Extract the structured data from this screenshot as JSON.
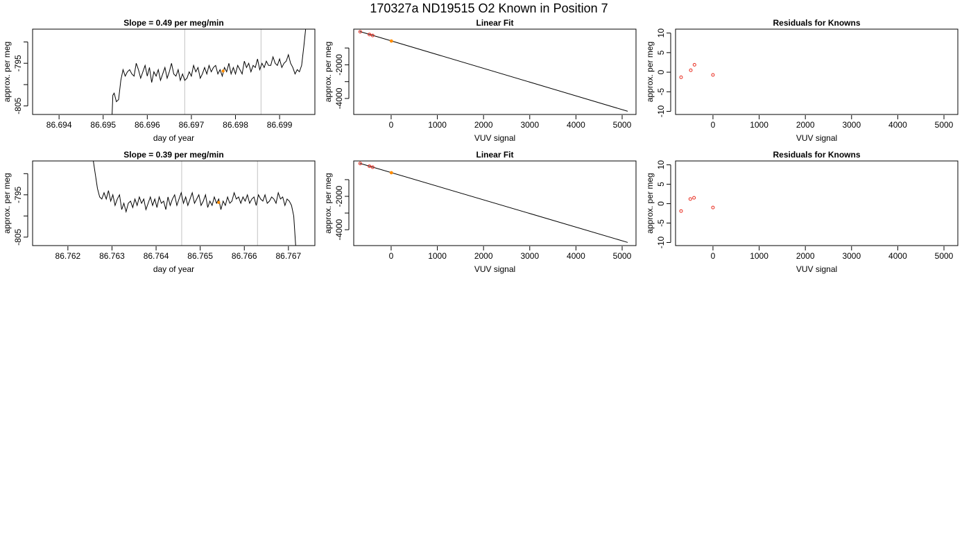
{
  "page": {
    "title": "170327a     ND19515   O2 Known in Position  7"
  },
  "colors": {
    "trace": "#000000",
    "known_points": "#e8291c",
    "sample_point": "#ff8c00",
    "window_lines": "#cccccc",
    "frame": "#000000"
  },
  "chart_data": [
    {
      "id": "trace-row1",
      "type": "line",
      "title": "Slope =  0.49  per meg/min",
      "xlabel": "day of year",
      "ylabel": "approx. per meg",
      "xlim": [
        86.6934,
        86.6998
      ],
      "ylim": [
        -807.0,
        -787.0
      ],
      "xticks": [
        86.694,
        86.695,
        86.696,
        86.697,
        86.698,
        86.699
      ],
      "xtick_labels": [
        "86.694",
        "86.695",
        "86.696",
        "86.697",
        "86.698",
        "86.699"
      ],
      "yticks": [
        -805,
        -800,
        -795,
        -790
      ],
      "ytick_labels": [
        "-805",
        "",
        "-795",
        ""
      ],
      "window_lines": [
        86.69685,
        86.69858
      ],
      "series": [
        {
          "x": [
            86.6952,
            86.69522,
            86.69525,
            86.6953,
            86.69535,
            86.6954,
            86.69545,
            86.6955,
            86.69555,
            86.6956,
            86.69565,
            86.6957,
            86.69575,
            86.6958,
            86.69585,
            86.6959,
            86.69595,
            86.696,
            86.69605,
            86.6961,
            86.69615,
            86.6962,
            86.69625,
            86.6963,
            86.69635,
            86.6964,
            86.69645,
            86.6965,
            86.69655,
            86.6966,
            86.69665,
            86.6967,
            86.69675,
            86.6968,
            86.69685,
            86.6969,
            86.69695,
            86.697,
            86.69705,
            86.6971,
            86.69715,
            86.6972,
            86.69725,
            86.6973,
            86.69735,
            86.6974,
            86.69745,
            86.6975,
            86.69755,
            86.6976,
            86.69765,
            86.6977,
            86.69775,
            86.6978,
            86.69785,
            86.6979,
            86.69795,
            86.698,
            86.69805,
            86.6981,
            86.69815,
            86.6982,
            86.69825,
            86.6983,
            86.69835,
            86.6984,
            86.69845,
            86.6985,
            86.69855,
            86.6986,
            86.69865,
            86.6987,
            86.69875,
            86.6988,
            86.69885,
            86.6989,
            86.69895,
            86.699,
            86.69905,
            86.6991,
            86.69915,
            86.6992,
            86.69925,
            86.6993,
            86.69935,
            86.6994,
            86.69945,
            86.6995,
            86.69955,
            86.6996
          ],
          "y": [
            -807.5,
            -802.5,
            -802.0,
            -804.0,
            -803.5,
            -799.0,
            -796.5,
            -798.0,
            -797.0,
            -796.5,
            -797.5,
            -798.0,
            -795.0,
            -796.5,
            -798.5,
            -797.0,
            -795.5,
            -798.0,
            -796.0,
            -799.5,
            -797.0,
            -798.0,
            -796.5,
            -799.0,
            -797.5,
            -796.0,
            -798.5,
            -797.0,
            -795.0,
            -797.5,
            -798.0,
            -796.5,
            -799.0,
            -797.5,
            -799.0,
            -798.5,
            -797.0,
            -798.0,
            -795.5,
            -797.0,
            -796.0,
            -798.5,
            -797.5,
            -796.0,
            -797.5,
            -795.5,
            -797.0,
            -796.0,
            -795.5,
            -797.5,
            -796.5,
            -798.0,
            -796.0,
            -797.0,
            -795.0,
            -797.5,
            -796.0,
            -797.5,
            -795.5,
            -796.5,
            -797.5,
            -794.5,
            -796.0,
            -795.0,
            -797.0,
            -795.5,
            -796.0,
            -794.0,
            -796.5,
            -795.0,
            -796.0,
            -794.5,
            -795.5,
            -795.5,
            -793.5,
            -795.0,
            -795.5,
            -794.0,
            -796.0,
            -795.0,
            -794.5,
            -793.0,
            -795.0,
            -796.0,
            -797.5,
            -796.5,
            -797.0,
            -795.5,
            -791.0,
            -786.0
          ]
        }
      ],
      "marker": {
        "x": 86.69772,
        "y": -796.8
      }
    },
    {
      "id": "fit-row1",
      "type": "scatter",
      "title": "Linear Fit",
      "xlabel": "VUV signal",
      "ylabel": "approx. per meg",
      "xlim": [
        -810,
        5300
      ],
      "ylim": [
        -4950,
        120
      ],
      "xticks": [
        0,
        1000,
        2000,
        3000,
        4000,
        5000
      ],
      "xtick_labels": [
        "0",
        "1000",
        "2000",
        "3000",
        "4000",
        "5000"
      ],
      "yticks": [
        -4000,
        -3000,
        -2000,
        -1000
      ],
      "ytick_labels": [
        "-4000",
        "",
        "-2000",
        ""
      ],
      "fit_line": {
        "x": [
          -680,
          5120
        ],
        "y": [
          -20,
          -4760
        ]
      },
      "points": [
        {
          "x": -670,
          "y": -33
        },
        {
          "x": -470,
          "y": -197
        },
        {
          "x": -400,
          "y": -255
        }
      ],
      "sample_point": {
        "x": 5,
        "y": -586
      }
    },
    {
      "id": "resid-row1",
      "type": "scatter",
      "title": "Residuals for Knowns",
      "xlabel": "VUV signal",
      "ylabel": "approx. per meg",
      "xlim": [
        -810,
        5300
      ],
      "ylim": [
        -10.8,
        11
      ],
      "xticks": [
        0,
        1000,
        2000,
        3000,
        4000,
        5000
      ],
      "xtick_labels": [
        "0",
        "1000",
        "2000",
        "3000",
        "4000",
        "5000"
      ],
      "yticks": [
        -10,
        -5,
        0,
        5,
        10
      ],
      "ytick_labels": [
        "-10",
        "-5",
        "0",
        "5",
        "10"
      ],
      "points": [
        {
          "x": -690,
          "y": -1.3
        },
        {
          "x": -480,
          "y": 0.5
        },
        {
          "x": -400,
          "y": 1.9
        },
        {
          "x": 0,
          "y": -0.7
        }
      ]
    },
    {
      "id": "trace-row2",
      "type": "line",
      "title": "Slope =  0.39  per meg/min",
      "xlabel": "day of year",
      "ylabel": "approx. per meg",
      "xlim": [
        86.7612,
        86.7676
      ],
      "ylim": [
        -807.0,
        -787.0
      ],
      "xticks": [
        86.762,
        86.763,
        86.764,
        86.765,
        86.766,
        86.767
      ],
      "xtick_labels": [
        "86.762",
        "86.763",
        "86.764",
        "86.765",
        "86.766",
        "86.767"
      ],
      "yticks": [
        -805,
        -800,
        -795,
        -790
      ],
      "ytick_labels": [
        "-805",
        "",
        "-795",
        ""
      ],
      "window_lines": [
        86.76458,
        86.7663
      ],
      "series": [
        {
          "x": [
            86.76257,
            86.76262,
            86.76267,
            86.76272,
            86.76277,
            86.76282,
            86.76287,
            86.76292,
            86.76297,
            86.76302,
            86.76307,
            86.76312,
            86.76317,
            86.76322,
            86.76327,
            86.76332,
            86.76337,
            86.76342,
            86.76347,
            86.76352,
            86.76357,
            86.76362,
            86.76367,
            86.76372,
            86.76377,
            86.76382,
            86.76387,
            86.76392,
            86.76397,
            86.76402,
            86.76407,
            86.76412,
            86.76417,
            86.76422,
            86.76427,
            86.76432,
            86.76437,
            86.76442,
            86.76447,
            86.76452,
            86.76457,
            86.76462,
            86.76467,
            86.76472,
            86.76477,
            86.76482,
            86.76487,
            86.76492,
            86.76497,
            86.76502,
            86.76507,
            86.76512,
            86.76517,
            86.76522,
            86.76527,
            86.76532,
            86.76537,
            86.76542,
            86.76547,
            86.76552,
            86.76557,
            86.76562,
            86.76567,
            86.76572,
            86.76577,
            86.76582,
            86.76587,
            86.76592,
            86.76597,
            86.76602,
            86.76607,
            86.76612,
            86.76617,
            86.76622,
            86.76627,
            86.76632,
            86.76637,
            86.76642,
            86.76647,
            86.76652,
            86.76657,
            86.76662,
            86.76667,
            86.76672,
            86.76677,
            86.76682,
            86.76687,
            86.76692,
            86.76697,
            86.76702,
            86.76707,
            86.76712,
            86.76717
          ],
          "y": [
            -786.5,
            -790.0,
            -793.5,
            -795.5,
            -796.0,
            -794.5,
            -796.0,
            -794.0,
            -796.5,
            -795.0,
            -797.5,
            -796.0,
            -795.0,
            -798.5,
            -797.0,
            -799.0,
            -797.0,
            -796.5,
            -798.0,
            -796.0,
            -797.5,
            -795.5,
            -797.0,
            -796.0,
            -798.5,
            -797.0,
            -795.5,
            -797.5,
            -796.0,
            -798.0,
            -795.5,
            -797.0,
            -796.5,
            -798.5,
            -795.5,
            -797.5,
            -796.0,
            -795.0,
            -797.5,
            -796.0,
            -794.5,
            -797.0,
            -795.5,
            -797.5,
            -796.0,
            -794.5,
            -797.0,
            -796.0,
            -795.0,
            -797.5,
            -796.5,
            -795.0,
            -798.0,
            -796.5,
            -797.5,
            -795.5,
            -797.0,
            -796.0,
            -798.5,
            -796.5,
            -797.5,
            -795.5,
            -797.0,
            -796.5,
            -794.5,
            -796.0,
            -795.5,
            -797.0,
            -795.5,
            -796.5,
            -795.0,
            -797.0,
            -796.0,
            -795.5,
            -797.5,
            -795.0,
            -796.0,
            -796.5,
            -795.0,
            -797.0,
            -796.5,
            -795.5,
            -796.0,
            -797.0,
            -794.5,
            -796.0,
            -795.5,
            -797.5,
            -796.0,
            -796.5,
            -797.5,
            -800.0,
            -808.0
          ]
        }
      ],
      "marker": {
        "x": 86.76542,
        "y": -796.8
      }
    },
    {
      "id": "fit-row2",
      "type": "scatter",
      "title": "Linear Fit",
      "xlabel": "VUV signal",
      "ylabel": "approx. per meg",
      "xlim": [
        -810,
        5300
      ],
      "ylim": [
        -4950,
        120
      ],
      "xticks": [
        0,
        1000,
        2000,
        3000,
        4000,
        5000
      ],
      "xtick_labels": [
        "0",
        "1000",
        "2000",
        "3000",
        "4000",
        "5000"
      ],
      "yticks": [
        -4000,
        -3000,
        -2000,
        -1000
      ],
      "ytick_labels": [
        "-4000",
        "",
        "-2000",
        ""
      ],
      "fit_line": {
        "x": [
          -680,
          5120
        ],
        "y": [
          -20,
          -4760
        ]
      },
      "points": [
        {
          "x": -670,
          "y": -33
        },
        {
          "x": -470,
          "y": -197
        },
        {
          "x": -400,
          "y": -255
        }
      ],
      "sample_point": {
        "x": 5,
        "y": -586
      }
    },
    {
      "id": "resid-row2",
      "type": "scatter",
      "title": "Residuals for Knowns",
      "xlabel": "VUV signal",
      "ylabel": "approx. per meg",
      "xlim": [
        -810,
        5300
      ],
      "ylim": [
        -10.8,
        11
      ],
      "xticks": [
        0,
        1000,
        2000,
        3000,
        4000,
        5000
      ],
      "xtick_labels": [
        "0",
        "1000",
        "2000",
        "3000",
        "4000",
        "5000"
      ],
      "yticks": [
        -10,
        -5,
        0,
        5,
        10
      ],
      "ytick_labels": [
        "-10",
        "-5",
        "0",
        "5",
        "10"
      ],
      "points": [
        {
          "x": -690,
          "y": -1.9
        },
        {
          "x": -490,
          "y": 1.2
        },
        {
          "x": -410,
          "y": 1.5
        },
        {
          "x": 0,
          "y": -1.0
        }
      ]
    }
  ]
}
